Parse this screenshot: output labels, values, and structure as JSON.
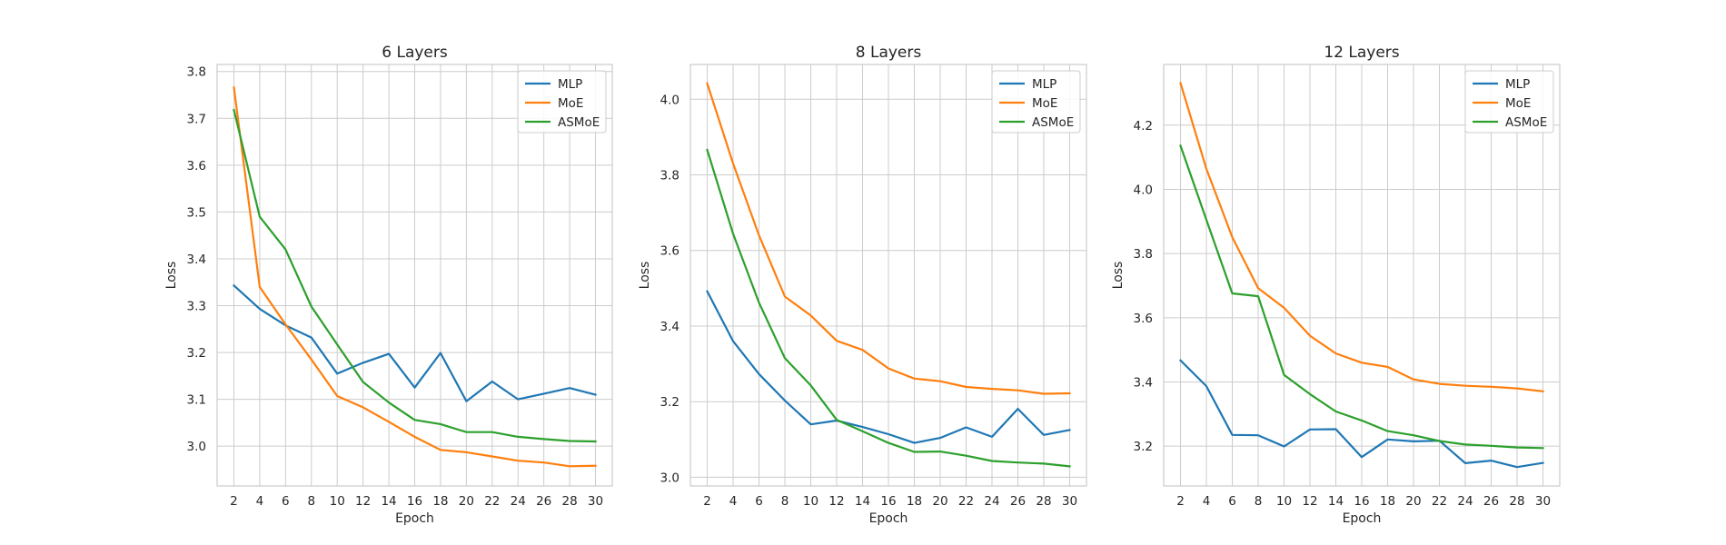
{
  "chart_data": [
    {
      "type": "line",
      "title": "6 Layers",
      "xlabel": "Epoch",
      "ylabel": "Loss",
      "x": [
        2,
        4,
        6,
        8,
        10,
        12,
        14,
        16,
        18,
        20,
        22,
        24,
        26,
        28,
        30
      ],
      "xlim": [
        0.7,
        31.3
      ],
      "ylim": [
        2.915,
        3.815
      ],
      "yticks": [
        3.0,
        3.1,
        3.2,
        3.3,
        3.4,
        3.5,
        3.6,
        3.7,
        3.8
      ],
      "ytick_labels": [
        "3.0",
        "3.1",
        "3.2",
        "3.3",
        "3.4",
        "3.5",
        "3.6",
        "3.7",
        "3.8"
      ],
      "grid": true,
      "legend_position": "top-right",
      "series": [
        {
          "name": "MLP",
          "color": "#1f77b4",
          "values": [
            3.343,
            3.293,
            3.258,
            3.232,
            3.155,
            3.178,
            3.197,
            3.125,
            3.199,
            3.096,
            3.138,
            3.1,
            3.112,
            3.124,
            3.11
          ]
        },
        {
          "name": "MoE",
          "color": "#ff7f0e",
          "values": [
            3.766,
            3.34,
            3.26,
            3.185,
            3.107,
            3.083,
            3.052,
            3.02,
            2.992,
            2.987,
            2.978,
            2.969,
            2.965,
            2.957,
            2.958
          ]
        },
        {
          "name": "ASMoE",
          "color": "#2ca02c",
          "values": [
            3.718,
            3.49,
            3.42,
            3.298,
            3.217,
            3.137,
            3.093,
            3.056,
            3.047,
            3.03,
            3.03,
            3.02,
            3.015,
            3.011,
            3.01
          ]
        }
      ]
    },
    {
      "type": "line",
      "title": "8 Layers",
      "xlabel": "Epoch",
      "ylabel": "Loss",
      "x": [
        2,
        4,
        6,
        8,
        10,
        12,
        14,
        16,
        18,
        20,
        22,
        24,
        26,
        28,
        30
      ],
      "xlim": [
        0.7,
        31.3
      ],
      "ylim": [
        2.977,
        4.092
      ],
      "yticks": [
        3.0,
        3.2,
        3.4,
        3.6,
        3.8,
        4.0
      ],
      "ytick_labels": [
        "3.0",
        "3.2",
        "3.4",
        "3.6",
        "3.8",
        "4.0"
      ],
      "grid": true,
      "legend_position": "top-right",
      "series": [
        {
          "name": "MLP",
          "color": "#1f77b4",
          "values": [
            3.492,
            3.36,
            3.273,
            3.203,
            3.14,
            3.15,
            3.133,
            3.114,
            3.091,
            3.104,
            3.132,
            3.107,
            3.181,
            3.112,
            3.125
          ]
        },
        {
          "name": "MoE",
          "color": "#ff7f0e",
          "values": [
            4.042,
            3.83,
            3.64,
            3.478,
            3.428,
            3.361,
            3.337,
            3.288,
            3.261,
            3.254,
            3.239,
            3.234,
            3.23,
            3.221,
            3.222
          ]
        },
        {
          "name": "ASMoE",
          "color": "#2ca02c",
          "values": [
            3.866,
            3.644,
            3.462,
            3.315,
            3.243,
            3.152,
            3.122,
            3.091,
            3.067,
            3.068,
            3.057,
            3.043,
            3.039,
            3.036,
            3.029
          ]
        }
      ]
    },
    {
      "type": "line",
      "title": "12 Layers",
      "xlabel": "Epoch",
      "ylabel": "Loss",
      "x": [
        2,
        4,
        6,
        8,
        10,
        12,
        14,
        16,
        18,
        20,
        22,
        24,
        26,
        28,
        30
      ],
      "xlim": [
        0.7,
        31.3
      ],
      "ylim": [
        3.076,
        4.389
      ],
      "yticks": [
        3.2,
        3.4,
        3.6,
        3.8,
        4.0,
        4.2
      ],
      "ytick_labels": [
        "3.2",
        "3.4",
        "3.6",
        "3.8",
        "4.0",
        "4.2"
      ],
      "grid": true,
      "legend_position": "top-right",
      "series": [
        {
          "name": "MLP",
          "color": "#1f77b4",
          "values": [
            3.467,
            3.387,
            3.235,
            3.234,
            3.199,
            3.252,
            3.253,
            3.166,
            3.221,
            3.215,
            3.217,
            3.147,
            3.155,
            3.135,
            3.148
          ]
        },
        {
          "name": "MoE",
          "color": "#ff7f0e",
          "values": [
            4.331,
            4.064,
            3.851,
            3.692,
            3.631,
            3.544,
            3.489,
            3.46,
            3.447,
            3.408,
            3.394,
            3.388,
            3.385,
            3.38,
            3.371
          ]
        },
        {
          "name": "ASMoE",
          "color": "#2ca02c",
          "values": [
            4.136,
            3.905,
            3.676,
            3.667,
            3.422,
            3.362,
            3.308,
            3.28,
            3.247,
            3.234,
            3.216,
            3.205,
            3.201,
            3.196,
            3.194
          ]
        }
      ]
    }
  ]
}
